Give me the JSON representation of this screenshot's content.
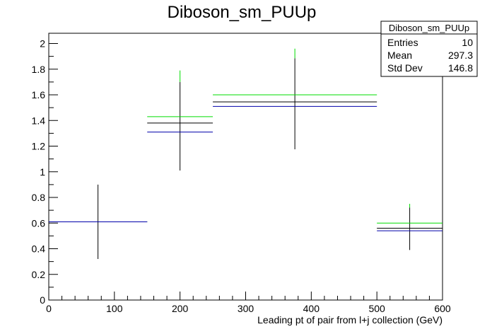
{
  "chart_data": {
    "type": "histogram",
    "title": "Diboson_sm_PUUp",
    "xlabel": "Leading pt of pair from l+j collection (GeV)",
    "ylabel": "",
    "xlim": [
      0,
      600
    ],
    "ylim": [
      0,
      2.08
    ],
    "x_ticks": [
      0,
      100,
      200,
      300,
      400,
      500,
      600
    ],
    "y_ticks": [
      0,
      0.2,
      0.4,
      0.6,
      0.8,
      1,
      1.2,
      1.4,
      1.6,
      1.8,
      2
    ],
    "grid": false,
    "series": [
      {
        "color": "#000000",
        "bins": [
          {
            "x_low": 0,
            "x_high": 150,
            "x_center": 75,
            "value": 0.61,
            "err_low": 0.32,
            "err_high": 0.9
          },
          {
            "x_low": 150,
            "x_high": 250,
            "x_center": 200,
            "value": 1.38,
            "err_low": 1.01,
            "err_high": 1.7
          },
          {
            "x_low": 250,
            "x_high": 500,
            "x_center": 375,
            "value": 1.545,
            "err_low": 1.175,
            "err_high": 1.885
          },
          {
            "x_low": 500,
            "x_high": 600,
            "x_center": 550,
            "value": 0.56,
            "err_low": 0.39,
            "err_high": 0.72
          }
        ]
      },
      {
        "color": "#00dd00",
        "bins": [
          {
            "x_low": 0,
            "x_high": 150,
            "x_center": 75,
            "value": 0.61
          },
          {
            "x_low": 150,
            "x_high": 250,
            "x_center": 200,
            "value": 1.43,
            "err_low": 1.7,
            "err_high": 1.79
          },
          {
            "x_low": 250,
            "x_high": 500,
            "x_center": 375,
            "value": 1.6,
            "err_low": 1.885,
            "err_high": 1.96
          },
          {
            "x_low": 500,
            "x_high": 600,
            "x_center": 550,
            "value": 0.6,
            "err_low": 0.72,
            "err_high": 0.75
          }
        ]
      },
      {
        "color": "#0000aa",
        "bins": [
          {
            "x_low": 0,
            "x_high": 150,
            "x_center": 75,
            "value": 0.61
          },
          {
            "x_low": 150,
            "x_high": 250,
            "x_center": 200,
            "value": 1.31
          },
          {
            "x_low": 250,
            "x_high": 500,
            "x_center": 375,
            "value": 1.51
          },
          {
            "x_low": 500,
            "x_high": 600,
            "x_center": 550,
            "value": 0.54
          }
        ]
      }
    ],
    "legend": "top-right",
    "stats_box": {
      "title": "Diboson_sm_PUUp",
      "rows": [
        {
          "label": "Entries",
          "value": "10"
        },
        {
          "label": "Mean",
          "value": "297.3"
        },
        {
          "label": "Std Dev",
          "value": "146.8"
        }
      ]
    }
  }
}
